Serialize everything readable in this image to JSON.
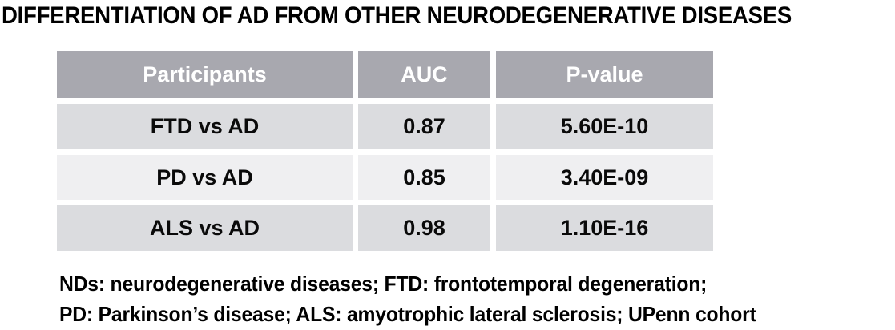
{
  "chart_data": {
    "type": "table",
    "title": "DIFFERENTIATION OF AD FROM OTHER NEURODEGENERATIVE DISEASES",
    "columns": [
      "Participants",
      "AUC",
      "P-value"
    ],
    "rows": [
      [
        "FTD vs AD",
        "0.87",
        "5.60E-10"
      ],
      [
        "PD vs AD",
        "0.85",
        "3.40E-09"
      ],
      [
        "ALS vs AD",
        "0.98",
        "1.10E-16"
      ]
    ],
    "notes": "NDs: neurodegenerative diseases; FTD: frontotemporal degeneration; PD: Parkinson’s disease; ALS: amyotrophic lateral sclerosis; UPenn cohort"
  },
  "footnote": {
    "line1": "NDs: neurodegenerative diseases; FTD: frontotemporal degeneration;",
    "line2": "PD: Parkinson’s disease; ALS: amyotrophic lateral sclerosis; UPenn cohort"
  },
  "colors": {
    "header_bg": "#a8a8af",
    "header_text": "#ffffff",
    "row_odd_bg": "#dbdcdf",
    "row_even_bg": "#efeff1",
    "body_text": "#0a0a0a"
  }
}
